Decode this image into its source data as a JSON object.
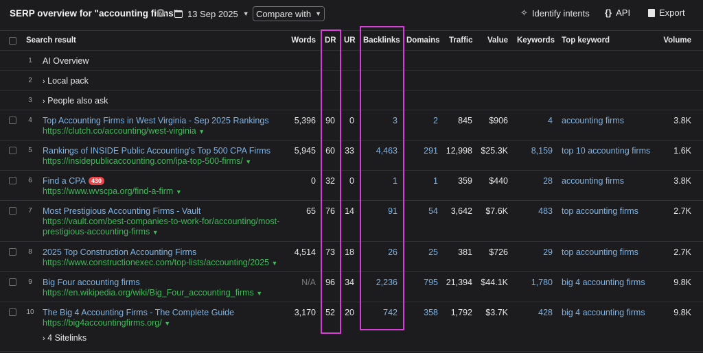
{
  "header": {
    "title": "SERP overview for \"accounting firms\"",
    "date": "13 Sep 2025",
    "compare_label": "Compare with",
    "identify_label": "Identify intents",
    "api_label": "API",
    "export_label": "Export"
  },
  "columns": {
    "search_result": "Search result",
    "words": "Words",
    "dr": "DR",
    "ur": "UR",
    "backlinks": "Backlinks",
    "domains": "Domains",
    "traffic": "Traffic",
    "value": "Value",
    "keywords": "Keywords",
    "top_keyword": "Top keyword",
    "volume": "Volume"
  },
  "features": [
    {
      "num": "1",
      "label": "AI Overview"
    },
    {
      "num": "2",
      "label": "Local pack"
    },
    {
      "num": "3",
      "label": "People also ask"
    }
  ],
  "results": [
    {
      "num": "4",
      "title": "Top Accounting Firms in West Virginia - Sep 2025 Rankings",
      "url1": "https://clutch.co/accounting/west-virginia",
      "url2": "",
      "words": "5,396",
      "dr": "90",
      "ur": "0",
      "backlinks": "3",
      "domains": "2",
      "traffic": "845",
      "value": "$906",
      "keywords": "4",
      "top_keyword": "accounting firms",
      "volume": "3.8K"
    },
    {
      "num": "5",
      "title": "Rankings of INSIDE Public Accounting's Top 500 CPA Firms",
      "url1": "https://insidepublicaccounting.com/ipa-top-500-firms/",
      "url2": "",
      "words": "5,945",
      "dr": "60",
      "ur": "33",
      "backlinks": "4,463",
      "domains": "291",
      "traffic": "12,998",
      "value": "$25.3K",
      "keywords": "8,159",
      "top_keyword": "top 10 accounting firms",
      "volume": "1.6K"
    },
    {
      "num": "6",
      "title": "Find a CPA",
      "badge": "430",
      "url1": "https://www.wvscpa.org/find-a-firm",
      "url2": "",
      "words": "0",
      "dr": "32",
      "ur": "0",
      "backlinks": "1",
      "domains": "1",
      "traffic": "359",
      "value": "$440",
      "keywords": "28",
      "top_keyword": "accounting firms",
      "volume": "3.8K"
    },
    {
      "num": "7",
      "title": "Most Prestigious Accounting Firms - Vault",
      "url1": "https://vault.com/best-companies-to-work-for/accounting/most-",
      "url2": "prestigious-accounting-firms",
      "words": "65",
      "dr": "76",
      "ur": "14",
      "backlinks": "91",
      "domains": "54",
      "traffic": "3,642",
      "value": "$7.6K",
      "keywords": "483",
      "top_keyword": "top accounting firms",
      "volume": "2.7K"
    },
    {
      "num": "8",
      "title": "2025 Top Construction Accounting Firms",
      "url1": "https://www.constructionexec.com/top-lists/accounting/2025",
      "url2": "",
      "words": "4,514",
      "dr": "73",
      "ur": "18",
      "backlinks": "26",
      "domains": "25",
      "traffic": "381",
      "value": "$726",
      "keywords": "29",
      "top_keyword": "top accounting firms",
      "volume": "2.7K"
    },
    {
      "num": "9",
      "title": "Big Four accounting firms",
      "url1": "https://en.wikipedia.org/wiki/Big_Four_accounting_firms",
      "url2": "",
      "words": "N/A",
      "dr": "96",
      "ur": "34",
      "backlinks": "2,236",
      "domains": "795",
      "traffic": "21,394",
      "value": "$44.1K",
      "keywords": "1,780",
      "top_keyword": "big 4 accounting firms",
      "volume": "9.8K"
    },
    {
      "num": "10",
      "title": "The Big 4 Accounting Firms - The Complete Guide",
      "url1": "https://big4accountingfirms.org/",
      "url2": "",
      "sitelinks": "4 Sitelinks",
      "words": "3,170",
      "dr": "52",
      "ur": "20",
      "backlinks": "742",
      "domains": "358",
      "traffic": "1,792",
      "value": "$3.7K",
      "keywords": "428",
      "top_keyword": "big 4 accounting firms",
      "volume": "9.8K"
    }
  ],
  "colors": {
    "highlight": "#d53fd8",
    "link": "#7cb3e6",
    "url": "#42b85a",
    "badge": "#e8464a"
  }
}
